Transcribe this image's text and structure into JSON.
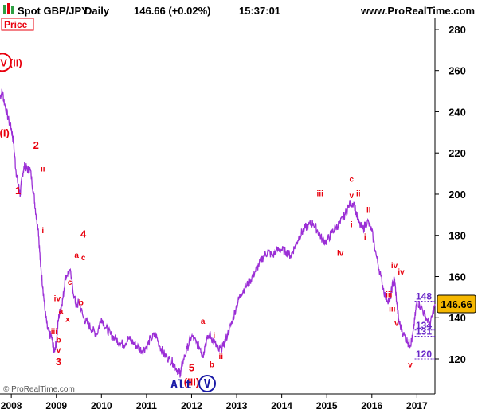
{
  "header": {
    "instrument": "Spot GBP/JPY",
    "period": "Daily",
    "quote": "146.66 (+0.02%)",
    "time": "15:37:01",
    "site": "www.ProRealTime.com"
  },
  "panel_label": "Price",
  "copyright": "© ProRealTime.com",
  "current_price": "146.66",
  "alt_label": "Alt",
  "alt_circle": "V",
  "colors": {
    "price_line": "#9b2fd6",
    "labels": "#e8000d",
    "levels": "#6a28c9",
    "current_price_tag": "#f5b700",
    "background": "#ffffff"
  },
  "chart_data": {
    "type": "line",
    "title": "Spot GBP/JPY Daily",
    "xlabel": "",
    "ylabel": "",
    "xlim": [
      2007.75,
      2017.4
    ],
    "ylim": [
      103,
      285
    ],
    "y_ticks": [
      120,
      140,
      160,
      180,
      200,
      220,
      240,
      260,
      280
    ],
    "x_ticks": [
      "2008",
      "2009",
      "2010",
      "2011",
      "2012",
      "2013",
      "2014",
      "2015",
      "2016",
      "2017"
    ],
    "grid": false,
    "series": [
      {
        "name": "GBP/JPY",
        "x": [
          2007.75,
          2007.8,
          2007.85,
          2007.95,
          2008.0,
          2008.05,
          2008.1,
          2008.15,
          2008.2,
          2008.25,
          2008.3,
          2008.35,
          2008.42,
          2008.5,
          2008.55,
          2008.6,
          2008.65,
          2008.7,
          2008.75,
          2008.8,
          2008.85,
          2008.9,
          2008.95,
          2009.0,
          2009.05,
          2009.1,
          2009.15,
          2009.2,
          2009.3,
          2009.4,
          2009.45,
          2009.5,
          2009.6,
          2009.7,
          2009.8,
          2009.9,
          2010.0,
          2010.1,
          2010.2,
          2010.3,
          2010.4,
          2010.5,
          2010.6,
          2010.7,
          2010.8,
          2010.9,
          2011.0,
          2011.1,
          2011.2,
          2011.3,
          2011.4,
          2011.5,
          2011.6,
          2011.7,
          2011.75,
          2011.8,
          2011.9,
          2012.0,
          2012.1,
          2012.2,
          2012.25,
          2012.3,
          2012.4,
          2012.5,
          2012.6,
          2012.7,
          2012.8,
          2012.9,
          2013.0,
          2013.1,
          2013.2,
          2013.3,
          2013.4,
          2013.5,
          2013.6,
          2013.7,
          2013.8,
          2013.9,
          2014.0,
          2014.1,
          2014.2,
          2014.3,
          2014.4,
          2014.5,
          2014.6,
          2014.7,
          2014.8,
          2014.9,
          2015.0,
          2015.1,
          2015.2,
          2015.3,
          2015.4,
          2015.5,
          2015.6,
          2015.7,
          2015.8,
          2015.9,
          2016.0,
          2016.1,
          2016.2,
          2016.3,
          2016.4,
          2016.45,
          2016.5,
          2016.55,
          2016.6,
          2016.7,
          2016.8,
          2016.85,
          2016.9,
          2016.95,
          2017.0,
          2017.1,
          2017.2,
          2017.3,
          2017.4
        ],
        "values": [
          247,
          250,
          244,
          235,
          232,
          225,
          212,
          205,
          200,
          210,
          214,
          212,
          212,
          200,
          190,
          183,
          165,
          155,
          143,
          135,
          132,
          130,
          124,
          128,
          140,
          145,
          150,
          160,
          163,
          150,
          145,
          148,
          140,
          137,
          134,
          132,
          140,
          135,
          132,
          130,
          128,
          127,
          130,
          128,
          126,
          124,
          126,
          130,
          132,
          126,
          122,
          120,
          118,
          114,
          113,
          118,
          125,
          131,
          128,
          125,
          121,
          127,
          132,
          128,
          124,
          126,
          132,
          138,
          146,
          152,
          155,
          158,
          162,
          166,
          170,
          172,
          170,
          173,
          173,
          172,
          170,
          175,
          180,
          183,
          185,
          186,
          182,
          178,
          177,
          181,
          184,
          186,
          190,
          195,
          196,
          186,
          183,
          187,
          182,
          170,
          160,
          150,
          148,
          155,
          159,
          148,
          138,
          132,
          128,
          127,
          130,
          139,
          148,
          145,
          140,
          137,
          146.66
        ]
      }
    ],
    "levels": [
      {
        "value": 148,
        "label": "148"
      },
      {
        "value": 134,
        "label": "134"
      },
      {
        "value": 131,
        "label": "131"
      },
      {
        "value": 120,
        "label": "120"
      }
    ],
    "annotations": [
      {
        "text": "(I)",
        "x": 2007.85,
        "y": 228
      },
      {
        "text": "(II)",
        "x": 2008.1,
        "y": 262
      },
      {
        "text": "1",
        "x": 2008.15,
        "y": 200
      },
      {
        "text": "2",
        "x": 2008.55,
        "y": 222
      },
      {
        "text": "ii",
        "x": 2008.7,
        "y": 211
      },
      {
        "text": "i",
        "x": 2008.7,
        "y": 181
      },
      {
        "text": "3",
        "x": 2009.05,
        "y": 117
      },
      {
        "text": "v",
        "x": 2009.05,
        "y": 123
      },
      {
        "text": "iii",
        "x": 2008.95,
        "y": 132
      },
      {
        "text": "b",
        "x": 2009.05,
        "y": 128
      },
      {
        "text": "iv",
        "x": 2009.02,
        "y": 148
      },
      {
        "text": "a",
        "x": 2009.1,
        "y": 142
      },
      {
        "text": "x",
        "x": 2009.25,
        "y": 138
      },
      {
        "text": "c",
        "x": 2009.3,
        "y": 156
      },
      {
        "text": "b",
        "x": 2009.55,
        "y": 146
      },
      {
        "text": "a",
        "x": 2009.45,
        "y": 169
      },
      {
        "text": "c",
        "x": 2009.6,
        "y": 168
      },
      {
        "text": "4",
        "x": 2009.6,
        "y": 179
      },
      {
        "text": "5",
        "x": 2012.0,
        "y": 114
      },
      {
        "text": "(III)",
        "x": 2012.0,
        "y": 107
      },
      {
        "text": "a",
        "x": 2012.25,
        "y": 137
      },
      {
        "text": "b",
        "x": 2012.45,
        "y": 116
      },
      {
        "text": "i",
        "x": 2012.5,
        "y": 130
      },
      {
        "text": "ii",
        "x": 2012.65,
        "y": 120
      },
      {
        "text": "iii",
        "x": 2014.85,
        "y": 199
      },
      {
        "text": "iv",
        "x": 2015.3,
        "y": 170
      },
      {
        "text": "c",
        "x": 2015.55,
        "y": 206
      },
      {
        "text": "v",
        "x": 2015.55,
        "y": 198
      },
      {
        "text": "ii",
        "x": 2015.7,
        "y": 199
      },
      {
        "text": "i",
        "x": 2015.55,
        "y": 184
      },
      {
        "text": "ii",
        "x": 2015.93,
        "y": 191
      },
      {
        "text": "i",
        "x": 2015.85,
        "y": 178
      },
      {
        "text": "iv",
        "x": 2016.5,
        "y": 164
      },
      {
        "text": "iv",
        "x": 2016.65,
        "y": 161
      },
      {
        "text": "iii",
        "x": 2016.38,
        "y": 150
      },
      {
        "text": "iii",
        "x": 2016.45,
        "y": 143
      },
      {
        "text": "v",
        "x": 2016.55,
        "y": 136
      },
      {
        "text": "v",
        "x": 2016.85,
        "y": 116
      }
    ],
    "wave_labels_circled": [
      {
        "text": "IV",
        "x": 2007.8,
        "y": 264
      }
    ]
  }
}
